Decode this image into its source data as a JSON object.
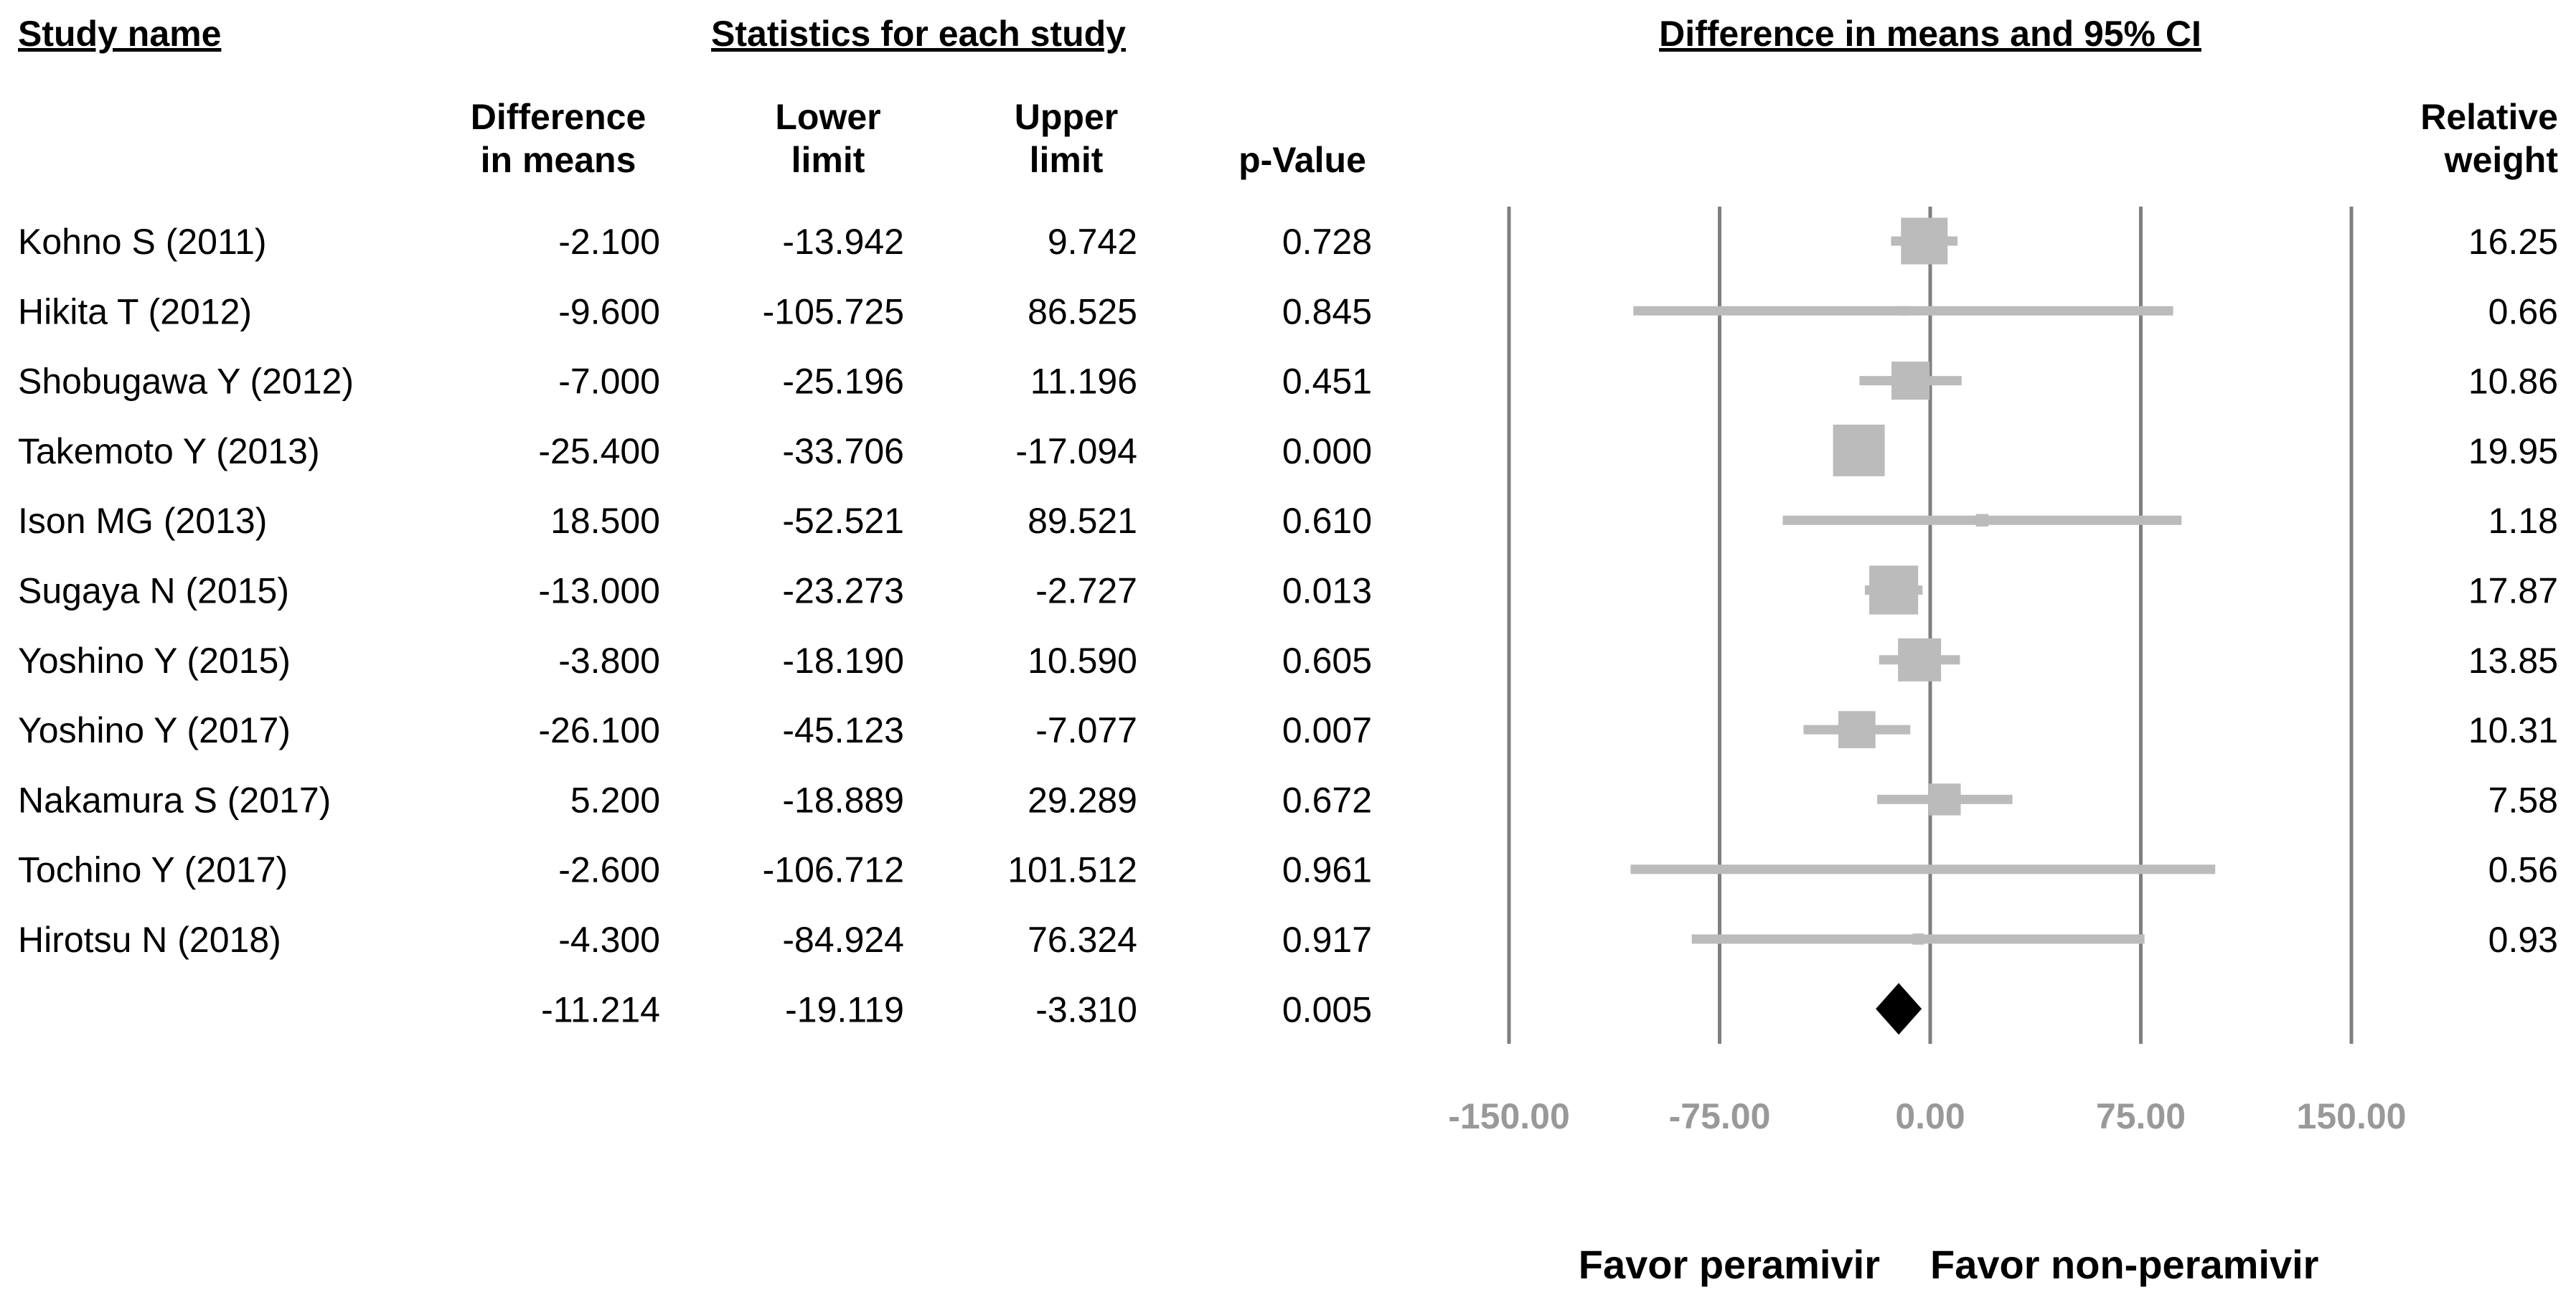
{
  "chart_data": {
    "type": "forest",
    "headers": {
      "study": "Study name",
      "stats": "Statistics for each study",
      "plot": "Difference in means and 95% CI"
    },
    "columns": {
      "diff": [
        "Difference",
        "in means"
      ],
      "lower": [
        "Lower",
        "limit"
      ],
      "upper": [
        "Upper",
        "limit"
      ],
      "p": "p-Value",
      "weight": [
        "Relative",
        "weight"
      ]
    },
    "studies": [
      {
        "name": "Kohno S (2011)",
        "diff": "-2.100",
        "lower": "-13.942",
        "upper": "9.742",
        "p": "0.728",
        "weight": "16.25"
      },
      {
        "name": "Hikita  T (2012)",
        "diff": "-9.600",
        "lower": "-105.725",
        "upper": "86.525",
        "p": "0.845",
        "weight": "0.66"
      },
      {
        "name": "Shobugawa Y (2012)",
        "diff": "-7.000",
        "lower": "-25.196",
        "upper": "11.196",
        "p": "0.451",
        "weight": "10.86"
      },
      {
        "name": "Takemoto  Y (2013)",
        "diff": "-25.400",
        "lower": "-33.706",
        "upper": "-17.094",
        "p": "0.000",
        "weight": "19.95"
      },
      {
        "name": "Ison MG (2013)",
        "diff": "18.500",
        "lower": "-52.521",
        "upper": "89.521",
        "p": "0.610",
        "weight": "1.18"
      },
      {
        "name": "Sugaya N (2015)",
        "diff": "-13.000",
        "lower": "-23.273",
        "upper": "-2.727",
        "p": "0.013",
        "weight": "17.87"
      },
      {
        "name": "Yoshino Y (2015)",
        "diff": "-3.800",
        "lower": "-18.190",
        "upper": "10.590",
        "p": "0.605",
        "weight": "13.85"
      },
      {
        "name": "Yoshino Y (2017)",
        "diff": "-26.100",
        "lower": "-45.123",
        "upper": "-7.077",
        "p": "0.007",
        "weight": "10.31"
      },
      {
        "name": "Nakamura S (2017)",
        "diff": "5.200",
        "lower": "-18.889",
        "upper": "29.289",
        "p": "0.672",
        "weight": "7.58"
      },
      {
        "name": "Tochino Y (2017)",
        "diff": "-2.600",
        "lower": "-106.712",
        "upper": "101.512",
        "p": "0.961",
        "weight": "0.56"
      },
      {
        "name": "Hirotsu N (2018)",
        "diff": "-4.300",
        "lower": "-84.924",
        "upper": "76.324",
        "p": "0.917",
        "weight": "0.93"
      }
    ],
    "pooled": {
      "diff": "-11.214",
      "lower": "-19.119",
      "upper": "-3.310",
      "p": "0.005"
    },
    "xaxis": {
      "ticks": [
        -150,
        -75,
        0,
        75,
        150
      ],
      "tick_labels": [
        "-150.00",
        "-75.00",
        "0.00",
        "75.00",
        "150.00"
      ],
      "xlim": [
        -150,
        150
      ],
      "left_label": "Favor peramivir",
      "right_label": "Favor non-peramivir"
    },
    "colors": {
      "study_marker": "#bbbbbb",
      "pooled_marker": "#000000",
      "gridline": "#7f7f7f",
      "tick_label": "#999999"
    }
  }
}
